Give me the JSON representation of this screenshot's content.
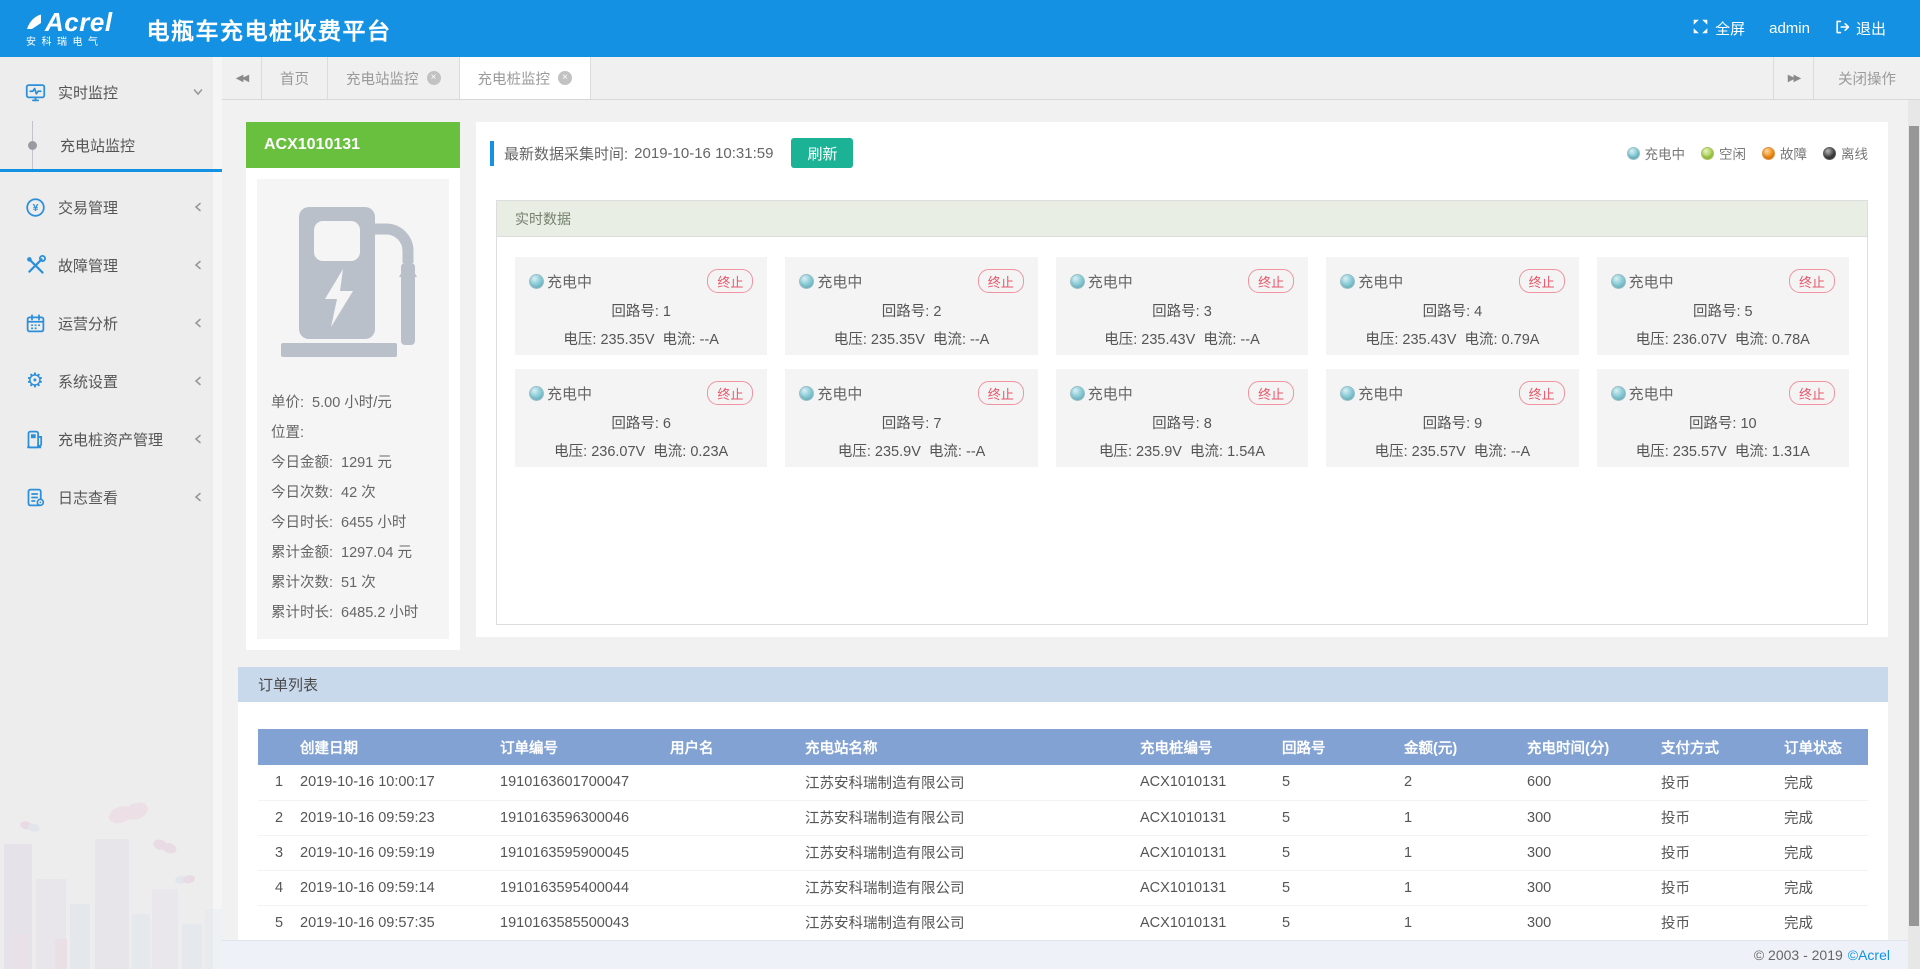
{
  "header": {
    "logo_text": "Acrel",
    "logo_sub": "安科瑞电气",
    "title": "电瓶车充电桩收费平台",
    "fullscreen_label": "全屏",
    "username": "admin",
    "logout_label": "退出"
  },
  "tabbar": {
    "tabs": [
      {
        "key": "home",
        "label": "首页",
        "closable": false,
        "active": false
      },
      {
        "key": "station-monitor",
        "label": "充电站监控",
        "closable": true,
        "active": false
      },
      {
        "key": "pile-monitor",
        "label": "充电桩监控",
        "closable": true,
        "active": true
      }
    ],
    "close_ops_label": "关闭操作"
  },
  "sidebar": {
    "items": [
      {
        "key": "realtime",
        "label": "实时监控",
        "icon": "realtime-monitor-icon",
        "expanded": true,
        "children": [
          {
            "key": "station-monitor",
            "label": "充电站监控",
            "active": true
          }
        ]
      },
      {
        "key": "transaction",
        "label": "交易管理",
        "icon": "transaction-icon",
        "expanded": false
      },
      {
        "key": "fault",
        "label": "故障管理",
        "icon": "fault-icon",
        "expanded": false
      },
      {
        "key": "analysis",
        "label": "运营分析",
        "icon": "analysis-icon",
        "expanded": false
      },
      {
        "key": "settings",
        "label": "系统设置",
        "icon": "settings-icon",
        "expanded": false
      },
      {
        "key": "asset",
        "label": "充电桩资产管理",
        "icon": "asset-icon",
        "expanded": false
      },
      {
        "key": "log",
        "label": "日志查看",
        "icon": "log-icon",
        "expanded": false
      }
    ]
  },
  "device": {
    "id": "ACX1010131",
    "stats": [
      {
        "label": "单价:",
        "value": "5.00 小时/元"
      },
      {
        "label": "位置:",
        "value": ""
      },
      {
        "label": "今日金额:",
        "value": "1291 元"
      },
      {
        "label": "今日次数:",
        "value": "42 次"
      },
      {
        "label": "今日时长:",
        "value": "6455 小时"
      },
      {
        "label": "累计金额:",
        "value": "1297.04 元"
      },
      {
        "label": "累计次数:",
        "value": "51 次"
      },
      {
        "label": "累计时长:",
        "value": "6485.2 小时"
      }
    ]
  },
  "monitor": {
    "collect_time_label": "最新数据采集时间:",
    "collect_time": "2019-10-16 10:31:59",
    "refresh_label": "刷新",
    "section_title": "实时数据",
    "terminate_label": "终止",
    "circuit_label": "回路号:",
    "voltage_label": "电压:",
    "current_label": "电流:",
    "legend": [
      {
        "label": "充电中",
        "color": "#76c4d1",
        "color_light": "#d8f0f4",
        "border": "#9bbfc6"
      },
      {
        "label": "空闲",
        "color": "#a3cc49",
        "color_light": "#e6f4c2",
        "border": "#a9c45e"
      },
      {
        "label": "故障",
        "color": "#f0880f",
        "color_light": "#fdd79e",
        "border": "#dc9240"
      },
      {
        "label": "离线",
        "color": "#3c3c3c",
        "color_light": "#b9b9b9",
        "border": "#5a5a5a"
      }
    ],
    "circuits": [
      {
        "no": "1",
        "status": "充电中",
        "voltage": "235.35V",
        "current": "--A"
      },
      {
        "no": "2",
        "status": "充电中",
        "voltage": "235.35V",
        "current": "--A"
      },
      {
        "no": "3",
        "status": "充电中",
        "voltage": "235.43V",
        "current": "--A"
      },
      {
        "no": "4",
        "status": "充电中",
        "voltage": "235.43V",
        "current": "0.79A"
      },
      {
        "no": "5",
        "status": "充电中",
        "voltage": "236.07V",
        "current": "0.78A"
      },
      {
        "no": "6",
        "status": "充电中",
        "voltage": "236.07V",
        "current": "0.23A"
      },
      {
        "no": "7",
        "status": "充电中",
        "voltage": "235.9V",
        "current": "--A"
      },
      {
        "no": "8",
        "status": "充电中",
        "voltage": "235.9V",
        "current": "1.54A"
      },
      {
        "no": "9",
        "status": "充电中",
        "voltage": "235.57V",
        "current": "--A"
      },
      {
        "no": "10",
        "status": "充电中",
        "voltage": "235.57V",
        "current": "1.31A"
      }
    ]
  },
  "orders": {
    "section_title": "订单列表",
    "columns": [
      "创建日期",
      "订单编号",
      "用户名",
      "充电站名称",
      "充电桩编号",
      "回路号",
      "金额(元)",
      "充电时间(分)",
      "支付方式",
      "订单状态"
    ],
    "rows": [
      [
        "2019-10-16 10:00:17",
        "1910163601700047",
        "",
        "江苏安科瑞制造有限公司",
        "ACX1010131",
        "5",
        "2",
        "600",
        "投币",
        "完成"
      ],
      [
        "2019-10-16 09:59:23",
        "1910163596300046",
        "",
        "江苏安科瑞制造有限公司",
        "ACX1010131",
        "5",
        "1",
        "300",
        "投币",
        "完成"
      ],
      [
        "2019-10-16 09:59:19",
        "1910163595900045",
        "",
        "江苏安科瑞制造有限公司",
        "ACX1010131",
        "5",
        "1",
        "300",
        "投币",
        "完成"
      ],
      [
        "2019-10-16 09:59:14",
        "1910163595400044",
        "",
        "江苏安科瑞制造有限公司",
        "ACX1010131",
        "5",
        "1",
        "300",
        "投币",
        "完成"
      ],
      [
        "2019-10-16 09:57:35",
        "1910163585500043",
        "",
        "江苏安科瑞制造有限公司",
        "ACX1010131",
        "5",
        "1",
        "300",
        "投币",
        "完成"
      ]
    ]
  },
  "footer": {
    "copyright": "© 2003 - 2019",
    "brand": "©Acrel"
  }
}
